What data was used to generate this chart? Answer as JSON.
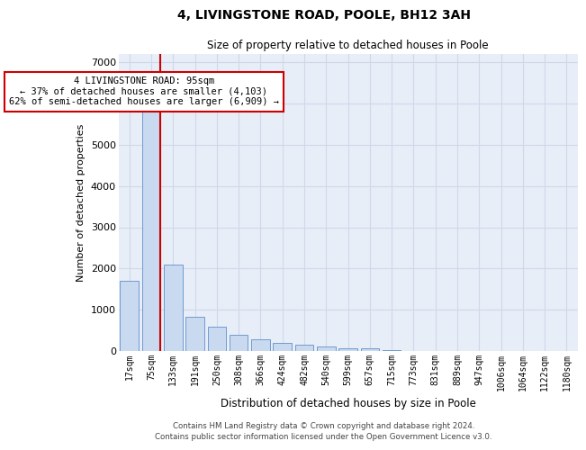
{
  "title1": "4, LIVINGSTONE ROAD, POOLE, BH12 3AH",
  "title2": "Size of property relative to detached houses in Poole",
  "xlabel": "Distribution of detached houses by size in Poole",
  "ylabel": "Number of detached properties",
  "bar_labels": [
    "17sqm",
    "75sqm",
    "133sqm",
    "191sqm",
    "250sqm",
    "308sqm",
    "366sqm",
    "424sqm",
    "482sqm",
    "540sqm",
    "599sqm",
    "657sqm",
    "715sqm",
    "773sqm",
    "831sqm",
    "889sqm",
    "947sqm",
    "1006sqm",
    "1064sqm",
    "1122sqm",
    "1180sqm"
  ],
  "bar_values": [
    1700,
    6200,
    2100,
    820,
    600,
    390,
    280,
    190,
    145,
    100,
    75,
    55,
    28,
    10,
    5,
    3,
    2,
    1,
    1,
    0,
    0
  ],
  "bar_color": "#c8d9f0",
  "bar_edgecolor": "#6090c8",
  "grid_color": "#d0d8e8",
  "background_color": "#e8eef8",
  "vline_color": "#cc0000",
  "annotation_text": "4 LIVINGSTONE ROAD: 95sqm\n← 37% of detached houses are smaller (4,103)\n62% of semi-detached houses are larger (6,909) →",
  "annotation_box_color": "#ffffff",
  "annotation_box_edgecolor": "#cc0000",
  "footer1": "Contains HM Land Registry data © Crown copyright and database right 2024.",
  "footer2": "Contains public sector information licensed under the Open Government Licence v3.0.",
  "ylim": [
    0,
    7200
  ],
  "yticks": [
    0,
    1000,
    2000,
    3000,
    4000,
    5000,
    6000,
    7000
  ]
}
